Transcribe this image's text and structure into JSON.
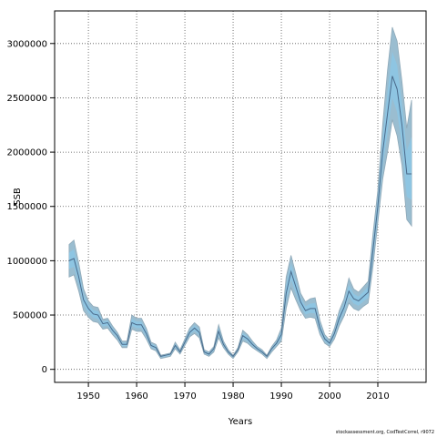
{
  "chart_data": {
    "type": "area",
    "xlabel": "Years",
    "ylabel": "SSB",
    "xlim": [
      1943,
      2020
    ],
    "ylim": [
      -120000,
      3300000
    ],
    "x_ticks": [
      1950,
      1960,
      1970,
      1980,
      1990,
      2000,
      2010
    ],
    "y_ticks": [
      0,
      500000,
      1000000,
      1500000,
      2000000,
      2500000,
      3000000
    ],
    "grid": true,
    "colors": {
      "band_fill": "#9abdd0",
      "band_stroke": "#8fa9b8",
      "inner_fill": "#8ec5e2",
      "line": "#4a6a8a",
      "grid": "#555555"
    },
    "series": [
      {
        "x": [
          1946,
          1947,
          1948,
          1949,
          1950,
          1951,
          1952,
          1953,
          1954,
          1955,
          1956,
          1957,
          1958,
          1959,
          1960,
          1961,
          1962,
          1963,
          1964,
          1965,
          1966,
          1967,
          1968,
          1969,
          1970,
          1971,
          1972,
          1973,
          1974,
          1975,
          1976,
          1977,
          1978,
          1979,
          1980,
          1981,
          1982,
          1983,
          1984,
          1985,
          1986,
          1987,
          1988,
          1989,
          1990,
          1991,
          1992,
          1993,
          1994,
          1995,
          1996,
          1997,
          1998,
          1999,
          2000,
          2001,
          2002,
          2003,
          2004,
          2005,
          2006,
          2007,
          2008,
          2009,
          2010,
          2011,
          2012,
          2013,
          2014,
          2015,
          2016,
          2017
        ],
        "values": [
          1000000,
          1020000,
          850000,
          640000,
          560000,
          510000,
          500000,
          420000,
          430000,
          360000,
          310000,
          230000,
          230000,
          430000,
          410000,
          410000,
          330000,
          220000,
          200000,
          120000,
          130000,
          140000,
          220000,
          160000,
          250000,
          340000,
          380000,
          340000,
          160000,
          140000,
          190000,
          350000,
          230000,
          160000,
          120000,
          180000,
          310000,
          280000,
          230000,
          190000,
          160000,
          120000,
          190000,
          240000,
          320000,
          700000,
          900000,
          760000,
          620000,
          540000,
          560000,
          560000,
          380000,
          280000,
          240000,
          330000,
          470000,
          570000,
          720000,
          650000,
          630000,
          670000,
          710000,
          1100000,
          1500000,
          2000000,
          2350000,
          2700000,
          2580000,
          2250000,
          1800000,
          1800000
        ]
      },
      {
        "name": "",
        "values": [
          1150000,
          1190000,
          980000,
          740000,
          630000,
          580000,
          570000,
          460000,
          470000,
          400000,
          340000,
          260000,
          260000,
          500000,
          470000,
          470000,
          380000,
          250000,
          230000,
          130000,
          140000,
          150000,
          250000,
          180000,
          280000,
          380000,
          430000,
          390000,
          180000,
          160000,
          210000,
          410000,
          260000,
          180000,
          130000,
          200000,
          360000,
          320000,
          260000,
          210000,
          180000,
          130000,
          210000,
          270000,
          380000,
          850000,
          1050000,
          880000,
          700000,
          620000,
          650000,
          660000,
          450000,
          320000,
          270000,
          380000,
          540000,
          650000,
          840000,
          740000,
          710000,
          760000,
          810000,
          1250000,
          1650000,
          2250000,
          2750000,
          3150000,
          3020000,
          2650000,
          2220000,
          2480000
        ]
      },
      {
        "name": "",
        "values": [
          850000,
          870000,
          720000,
          540000,
          480000,
          440000,
          430000,
          370000,
          380000,
          320000,
          270000,
          200000,
          200000,
          370000,
          350000,
          350000,
          280000,
          190000,
          170000,
          100000,
          110000,
          120000,
          190000,
          140000,
          220000,
          300000,
          330000,
          290000,
          140000,
          120000,
          160000,
          290000,
          200000,
          140000,
          100000,
          160000,
          260000,
          240000,
          200000,
          170000,
          140000,
          100000,
          160000,
          210000,
          260000,
          560000,
          750000,
          640000,
          540000,
          470000,
          480000,
          470000,
          320000,
          240000,
          210000,
          280000,
          400000,
          490000,
          610000,
          560000,
          540000,
          580000,
          610000,
          950000,
          1350000,
          1750000,
          2000000,
          2300000,
          2150000,
          1880000,
          1380000,
          1320000
        ]
      }
    ]
  },
  "footer": {
    "credit": "stockassessment.org, CodTestCorrel, r9072"
  }
}
